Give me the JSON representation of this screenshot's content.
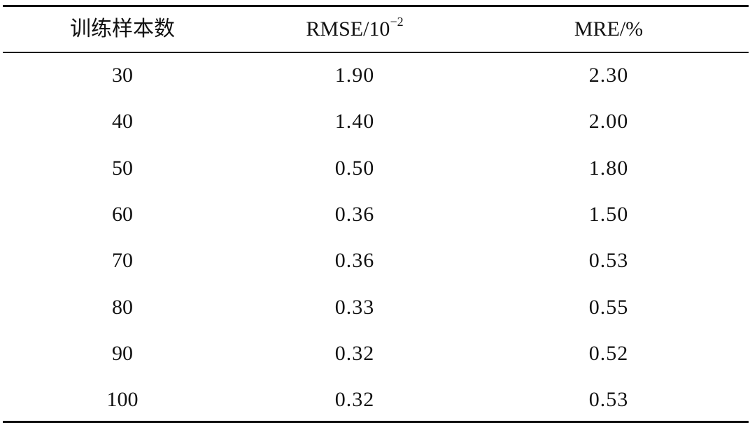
{
  "table": {
    "headers": [
      "训练样本数",
      {
        "text": "RMSE/10",
        "sup": "−2"
      },
      "MRE/%"
    ],
    "rows": [
      [
        "30",
        "1.90",
        "2.30"
      ],
      [
        "40",
        "1.40",
        "2.00"
      ],
      [
        "50",
        "0.50",
        "1.80"
      ],
      [
        "60",
        "0.36",
        "1.50"
      ],
      [
        "70",
        "0.36",
        "0.53"
      ],
      [
        "80",
        "0.33",
        "0.55"
      ],
      [
        "90",
        "0.32",
        "0.52"
      ],
      [
        "100",
        "0.32",
        "0.53"
      ]
    ]
  }
}
